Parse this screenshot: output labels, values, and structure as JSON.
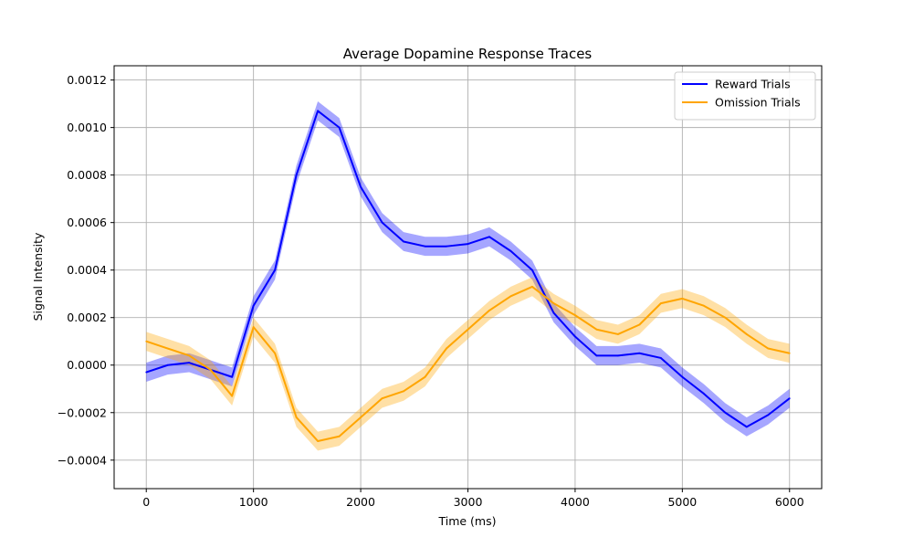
{
  "chart_data": {
    "type": "line",
    "title": "Average Dopamine Response Traces",
    "xlabel": "Time (ms)",
    "ylabel": "Signal Intensity",
    "xlim": [
      -300,
      6300
    ],
    "ylim": [
      -0.00052,
      0.00126
    ],
    "xticks": [
      0,
      1000,
      2000,
      3000,
      4000,
      5000,
      6000
    ],
    "xtick_labels": [
      "0",
      "1000",
      "2000",
      "3000",
      "4000",
      "5000",
      "6000"
    ],
    "yticks": [
      -0.0004,
      -0.0002,
      0.0,
      0.0002,
      0.0004,
      0.0006,
      0.0008,
      0.001,
      0.0012
    ],
    "ytick_labels": [
      "−0.0004",
      "−0.0002",
      "0.0000",
      "0.0002",
      "0.0004",
      "0.0006",
      "0.0008",
      "0.0010",
      "0.0012"
    ],
    "grid": true,
    "legend_position": "top-right",
    "x": [
      0,
      200,
      400,
      600,
      800,
      1000,
      1200,
      1400,
      1600,
      1800,
      2000,
      2200,
      2400,
      2600,
      2800,
      3000,
      3200,
      3400,
      3600,
      3800,
      4000,
      4200,
      4400,
      4600,
      4800,
      5000,
      5200,
      5400,
      5600,
      5800,
      6000
    ],
    "series": [
      {
        "name": "Reward Trials",
        "color": "#0000ff",
        "values": [
          -3e-05,
          0.0,
          1e-05,
          -2e-05,
          -5e-05,
          0.00025,
          0.0004,
          0.0008,
          0.00107,
          0.001,
          0.00075,
          0.0006,
          0.00052,
          0.0005,
          0.0005,
          0.00051,
          0.00054,
          0.00048,
          0.0004,
          0.00022,
          0.00012,
          4e-05,
          4e-05,
          5e-05,
          3e-05,
          -5e-05,
          -0.00012,
          -0.0002,
          -0.00026,
          -0.00021,
          -0.00014
        ],
        "error": 4e-05
      },
      {
        "name": "Omission Trials",
        "color": "#ffa500",
        "values": [
          0.0001,
          7e-05,
          4e-05,
          -2e-05,
          -0.00013,
          0.00016,
          5e-05,
          -0.00022,
          -0.00032,
          -0.0003,
          -0.00022,
          -0.00014,
          -0.00011,
          -5e-05,
          7e-05,
          0.00015,
          0.00023,
          0.00029,
          0.00033,
          0.00026,
          0.00021,
          0.00015,
          0.00013,
          0.00017,
          0.00026,
          0.00028,
          0.00025,
          0.0002,
          0.00013,
          7e-05,
          5e-05
        ],
        "error": 4e-05
      }
    ]
  }
}
